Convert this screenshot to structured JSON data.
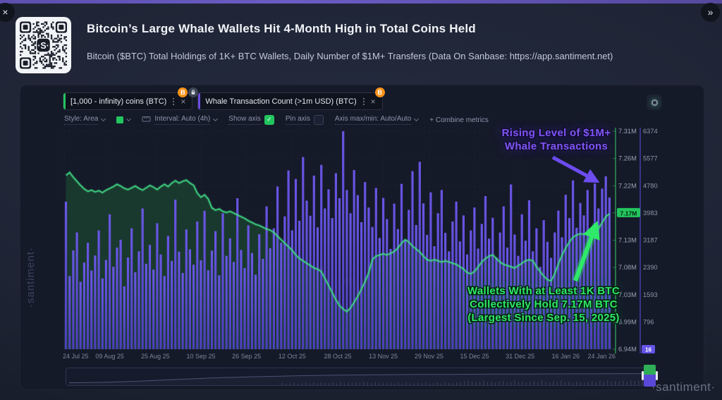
{
  "page": {
    "close_button": "×",
    "next_button": "»",
    "watermark_side": "·santiment·",
    "watermark_bottom": "·santiment·",
    "watermark_chart": "santiment"
  },
  "header": {
    "title": "Bitcoin’s Large Whale Wallets Hit 4-Month High in Total Coins Held",
    "subtitle": "Bitcoin ($BTC) Total Holdings of 1K+ BTC Wallets, Daily Number of $1M+ Transfers (Data On Sanbase: https://app.santiment.net)"
  },
  "metrics": [
    {
      "label": "[1,000 - infinity) coins (BTC)",
      "color": "#22c55e",
      "badge": "B",
      "locked": true
    },
    {
      "label": "Whale Transaction Count (>1m USD) (BTC)",
      "color": "#6c4ce0",
      "badge": "B",
      "locked": false
    }
  ],
  "toolbar": {
    "style_label": "Style: Area",
    "interval_label": "Interval: Auto (4h)",
    "show_axis_label": "Show axis",
    "show_axis_checked": "✓",
    "pin_axis_label": "Pin axis",
    "axis_maxmin_label": "Axis max/min: Auto/Auto",
    "combine_label": "+  Combine metrics",
    "swatch_color": "#22c55e"
  },
  "annotations": {
    "purple": {
      "color": "#7e55f6",
      "lines": [
        "Rising Level of $1M+",
        "Whale Transactions"
      ]
    },
    "green": {
      "color": "#2fe968",
      "lines": [
        "Wallets With at Least 1K BTC",
        "Collectively Hold 7.17M BTC",
        "(Largest Since Sep. 15, 2025)"
      ]
    }
  },
  "chart_data": {
    "type": "mixed",
    "x_labels": [
      "24 Jul 25",
      "09 Aug 25",
      "25 Aug 25",
      "10 Sep 25",
      "26 Sep 25",
      "12 Oct 25",
      "28 Oct 25",
      "13 Nov 25",
      "29 Nov 25",
      "15 Dec 25",
      "31 Dec 25",
      "16 Jan 26",
      "24 Jan 26"
    ],
    "y_axis_green": {
      "labels": [
        "7.31M",
        "7.26M",
        "7.22M",
        "7.17M",
        "7.13M",
        "7.08M",
        "7.03M",
        "6.99M",
        "6.94M"
      ],
      "highlight": "7.17M",
      "range": [
        6.94,
        7.31
      ],
      "line_color": "#2f9e57",
      "text_color": "#99a0b2",
      "badge_color": "#23c55e"
    },
    "y_axis_purple": {
      "labels": [
        "6374",
        "5577",
        "4780",
        "3983",
        "3187",
        "2390",
        "1593",
        "796",
        "16"
      ],
      "highlight": "16",
      "range": [
        16,
        6374
      ],
      "line_color": "#4a3fb0",
      "text_color": "#8d94a6",
      "badge_color": "#6454e6"
    },
    "series": [
      {
        "name": "[1,000 - infinity) coins (BTC)",
        "type": "area",
        "unit": "M BTC",
        "axis": "green",
        "line_color": "#3fd883",
        "fill_color": "#1c4530",
        "values": [
          7.235,
          7.24,
          7.232,
          7.225,
          7.218,
          7.212,
          7.208,
          7.21,
          7.207,
          7.209,
          7.206,
          7.21,
          7.213,
          7.216,
          7.22,
          7.217,
          7.213,
          7.211,
          7.214,
          7.217,
          7.213,
          7.21,
          7.214,
          7.218,
          7.215,
          7.211,
          7.216,
          7.22,
          7.216,
          7.222,
          7.226,
          7.222,
          7.225,
          7.227,
          7.222,
          7.218,
          7.205,
          7.198,
          7.202,
          7.195,
          7.18,
          7.176,
          7.178,
          7.174,
          7.172,
          7.174,
          7.171,
          7.168,
          7.165,
          7.162,
          7.158,
          7.155,
          7.152,
          7.15,
          7.147,
          7.144,
          7.142,
          7.138,
          7.132,
          7.126,
          7.12,
          7.114,
          7.108,
          7.1,
          7.094,
          7.09,
          7.086,
          7.082,
          7.078,
          7.076,
          7.072,
          7.06,
          7.048,
          7.036,
          7.024,
          7.014,
          7.008,
          7.004,
          7.01,
          7.02,
          7.03,
          7.042,
          7.055,
          7.07,
          7.092,
          7.098,
          7.1,
          7.102,
          7.1,
          7.103,
          7.106,
          7.112,
          7.12,
          7.126,
          7.122,
          7.115,
          7.11,
          7.105,
          7.098,
          7.092,
          7.09,
          7.092,
          7.09,
          7.088,
          7.09,
          7.088,
          7.086,
          7.084,
          7.08,
          7.076,
          7.07,
          7.068,
          7.072,
          7.08,
          7.088,
          7.094,
          7.098,
          7.1,
          7.094,
          7.088,
          7.084,
          7.082,
          7.08,
          7.078,
          7.082,
          7.086,
          7.09,
          7.092,
          7.09,
          7.08,
          7.072,
          7.064,
          7.058,
          7.056,
          7.068,
          7.085,
          7.1,
          7.112,
          7.122,
          7.13,
          7.134,
          7.136,
          7.135,
          7.136,
          7.135,
          7.138,
          7.145,
          7.155,
          7.165,
          7.17
        ]
      },
      {
        "name": "Whale Transaction Count (>1m USD) (BTC)",
        "type": "bar",
        "axis": "purple",
        "color_top": "#6e58ee",
        "color_bottom": "#4f3fc0",
        "values": [
          4318,
          2150,
          2896,
          3422,
          1980,
          2540,
          3120,
          2310,
          2750,
          3480,
          2080,
          2620,
          3950,
          2420,
          2980,
          3210,
          1850,
          2690,
          3540,
          2260,
          2870,
          4120,
          2510,
          3060,
          2340,
          3690,
          2780,
          2150,
          3320,
          2590,
          4380,
          2860,
          2240,
          3510,
          2930,
          2480,
          3740,
          2610,
          4050,
          2320,
          2890,
          3460,
          2170,
          3980,
          2740,
          3250,
          2560,
          4420,
          2910,
          2380,
          3630,
          2820,
          2190,
          3370,
          2650,
          4180,
          2960,
          3540,
          4760,
          3120,
          3890,
          5230,
          3480,
          4980,
          3760,
          5620,
          4350,
          3910,
          5080,
          3570,
          5390,
          4120,
          4680,
          3840,
          5150,
          4420,
          6374,
          4660,
          3980,
          5240,
          4510,
          3720,
          4890,
          4150,
          3580,
          4720,
          3260,
          4430,
          3810,
          2940,
          4260,
          3520,
          4840,
          3190,
          4080,
          5210,
          3640,
          5480,
          4270,
          3350,
          4590,
          3020,
          3980,
          4660,
          3410,
          2870,
          3740,
          4320,
          3160,
          3920,
          2780,
          3480,
          4150,
          2950,
          3670,
          4480,
          3240,
          3850,
          2690,
          3420,
          4180,
          2980,
          4820,
          3360,
          2740,
          3950,
          3180,
          4360,
          2870,
          3540,
          2420,
          3780,
          3150,
          2680,
          3420,
          4060,
          3280,
          4520,
          3840,
          4940,
          3560,
          4280,
          3920,
          4660,
          3380,
          4850,
          4120,
          4700,
          5060,
          4440
        ]
      }
    ],
    "brush_profile": [
      0.1,
      0.11,
      0.13,
      0.16,
      0.2,
      0.25,
      0.31,
      0.37,
      0.43,
      0.49,
      0.54,
      0.58,
      0.62,
      0.66,
      0.69,
      0.72,
      0.75,
      0.77,
      0.79,
      0.81,
      0.83,
      0.84,
      0.85,
      0.86,
      0.87,
      0.88,
      0.88,
      0.89,
      0.9,
      0.9,
      0.91,
      0.91,
      0.92,
      0.92,
      0.93,
      0.93,
      0.94,
      0.94,
      0.95,
      0.95,
      0.96,
      0.96
    ]
  }
}
